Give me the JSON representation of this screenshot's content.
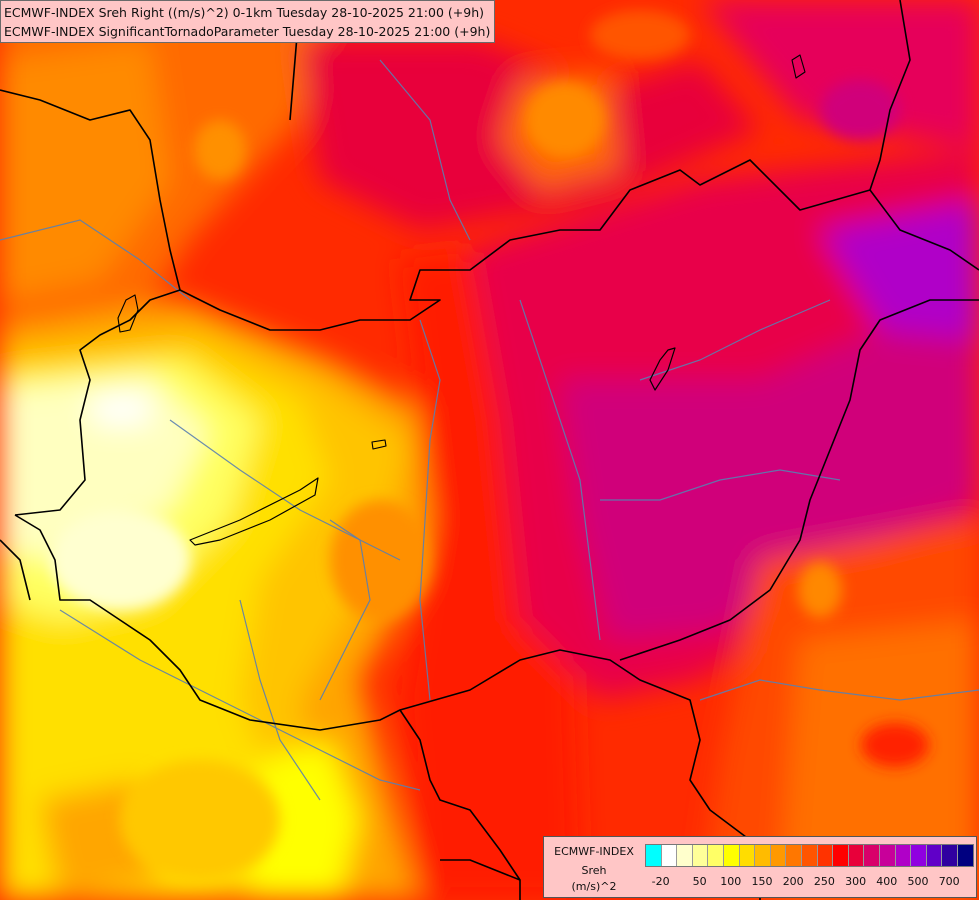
{
  "header": {
    "line1": "ECMWF-INDEX Sreh Right ((m/s)^2) 0-1km Tuesday 28-10-2025 21:00 (+9h)",
    "line2": "ECMWF-INDEX SignificantTornadoParameter Tuesday 28-10-2025 21:00 (+9h)"
  },
  "legend": {
    "source": "ECMWF-INDEX",
    "variable": "Sreh",
    "unit": "(m/s)^2",
    "colors": [
      "#00ffff",
      "#ffffff",
      "#ffffcc",
      "#ffff99",
      "#ffff66",
      "#ffff00",
      "#ffdd00",
      "#ffbb00",
      "#ff9900",
      "#ff7700",
      "#ff5500",
      "#ff3300",
      "#ff0000",
      "#e8003a",
      "#d8006a",
      "#c8009a",
      "#b000c8",
      "#9000e0",
      "#6000c8",
      "#3000a0",
      "#000080"
    ],
    "ticks": [
      {
        "label": "-20",
        "index": 0.5
      },
      {
        "label": "50",
        "index": 3
      },
      {
        "label": "100",
        "index": 5
      },
      {
        "label": "150",
        "index": 7
      },
      {
        "label": "200",
        "index": 9
      },
      {
        "label": "250",
        "index": 11
      },
      {
        "label": "300",
        "index": 13
      },
      {
        "label": "400",
        "index": 15
      },
      {
        "label": "500",
        "index": 17
      },
      {
        "label": "700",
        "index": 19
      }
    ]
  },
  "map": {
    "border_color": "#000000",
    "river_color": "#5a7fb0"
  }
}
